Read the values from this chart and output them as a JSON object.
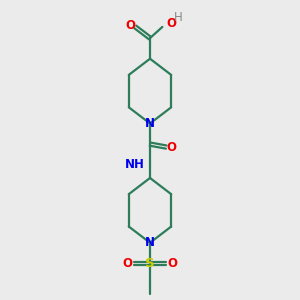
{
  "background_color": "#ebebeb",
  "bond_color": "#2d7d5a",
  "N_color": "#0000ee",
  "O_color": "#ee0000",
  "S_color": "#cccc00",
  "line_width": 1.6,
  "font_size": 8.5,
  "fig_width": 3.0,
  "fig_height": 3.0,
  "dpi": 100,
  "xlim": [
    3.5,
    7.5
  ],
  "ylim": [
    0.8,
    10.8
  ]
}
